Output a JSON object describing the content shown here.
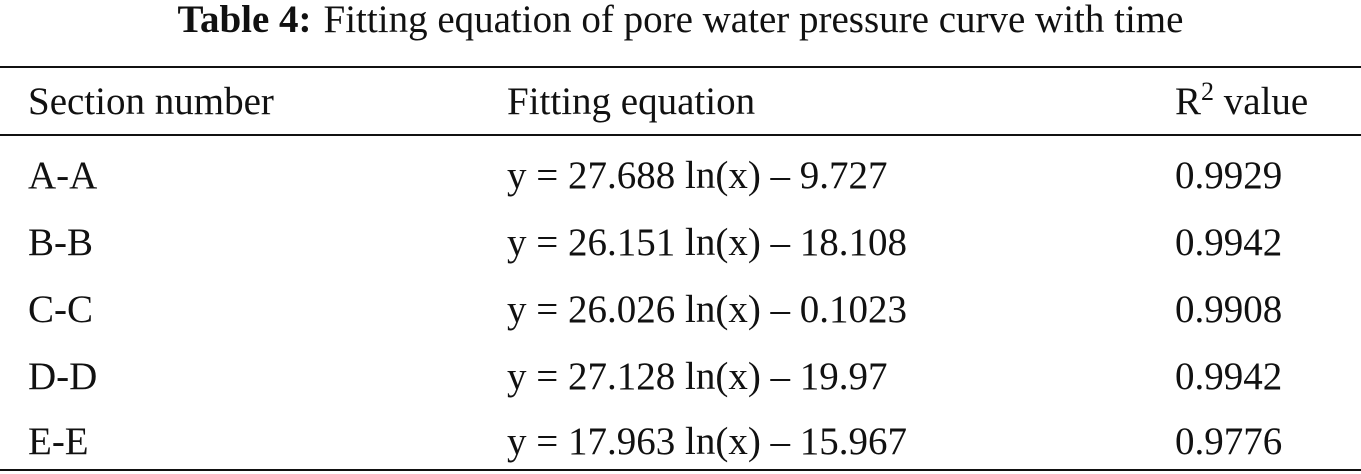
{
  "caption": {
    "label": "Table 4:",
    "title": "Fitting equation of pore water pressure curve with time"
  },
  "table": {
    "header": [
      "Section number",
      "Fitting equation",
      {
        "symbol": "R",
        "superscript": "2",
        "text": "value"
      }
    ],
    "rows": [
      [
        "A-A",
        "y = 27.688 ln(x) – 9.727",
        "0.9929"
      ],
      [
        "B-B",
        "y = 26.151 ln(x) – 18.108",
        "0.9942"
      ],
      [
        "C-C",
        "y = 26.026 ln(x) – 0.1023",
        "0.9908"
      ],
      [
        "D-D",
        "y = 27.128 ln(x) – 19.97",
        "0.9942"
      ],
      [
        "E-E",
        "y = 17.963 ln(x) – 15.967",
        "0.9776"
      ]
    ]
  }
}
